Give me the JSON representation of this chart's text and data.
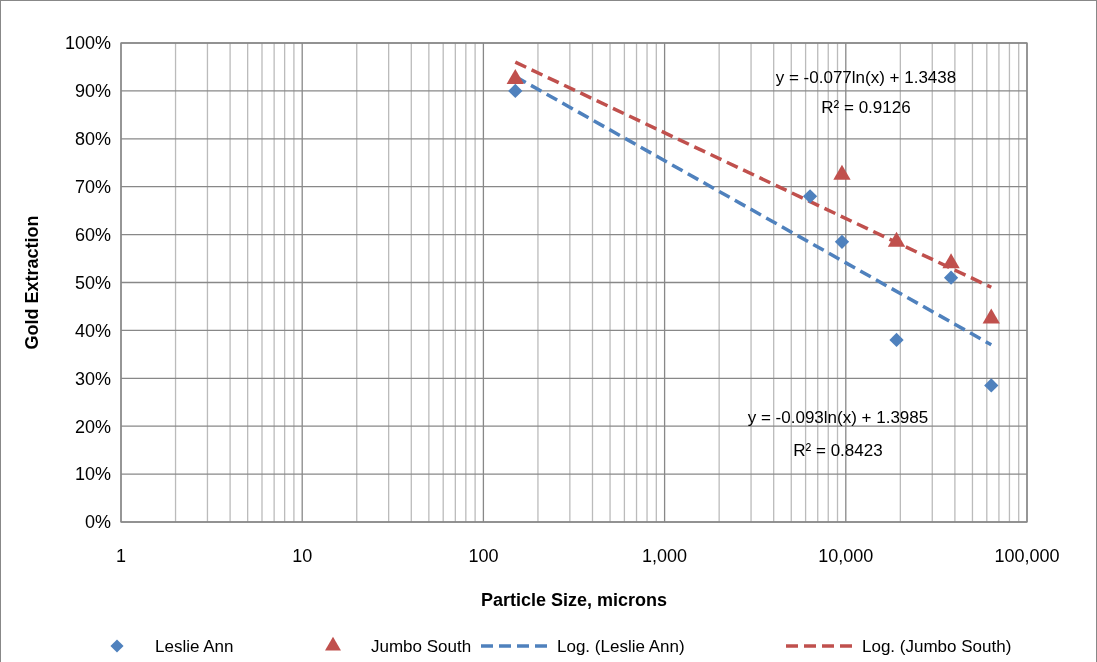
{
  "chart_data": {
    "type": "scatter",
    "xlabel": "Particle Size, microns",
    "ylabel": "Gold Extraction",
    "log": "x",
    "xlim": [
      1,
      100000
    ],
    "xticks": [
      1,
      10,
      100,
      {
        "value": 1000,
        "label": "1,000"
      },
      {
        "value": 10000,
        "label": "10,000"
      },
      {
        "value": 100000,
        "label": "100,000"
      }
    ],
    "ylim": [
      0,
      100
    ],
    "yticks": [
      {
        "value": 0,
        "label": "0%"
      },
      {
        "value": 10,
        "label": "10%"
      },
      {
        "value": 20,
        "label": "20%"
      },
      {
        "value": 30,
        "label": "30%"
      },
      {
        "value": 40,
        "label": "40%"
      },
      {
        "value": 50,
        "label": "50%"
      },
      {
        "value": 60,
        "label": "60%"
      },
      {
        "value": 70,
        "label": "70%"
      },
      {
        "value": 80,
        "label": "80%"
      },
      {
        "value": 90,
        "label": "90%"
      },
      {
        "value": 100,
        "label": "100%"
      }
    ],
    "grid": true,
    "legend": "bottom",
    "series": [
      {
        "name": "Leslie Ann",
        "marker": "diamond",
        "color": "#4f81bd",
        "x": [
          150,
          6350,
          9525,
          19050,
          38100,
          63500
        ],
        "values": [
          90,
          68,
          58.5,
          38,
          51,
          28.5
        ]
      },
      {
        "name": "Jumbo South",
        "marker": "triangle",
        "color": "#c0504d",
        "x": [
          150,
          9525,
          19050,
          38100,
          63500
        ],
        "values": [
          92.5,
          72.5,
          58.5,
          54,
          42.5
        ]
      },
      {
        "name": "Log. (Leslie Ann)",
        "type": "line",
        "line_style": "dashed",
        "color": "#4f81bd",
        "x": [
          150,
          63500
        ],
        "values": [
          93,
          37
        ]
      },
      {
        "name": "Log. (Jumbo South)",
        "type": "line",
        "line_style": "dashed",
        "color": "#c0504d",
        "x": [
          150,
          63500
        ],
        "values": [
          96,
          49
        ]
      }
    ],
    "annotations": [
      "y = -0.077ln(x) + 1.3438",
      "R² = 0.9126",
      "y = -0.093ln(x) + 1.3985",
      "R² = 0.8423"
    ]
  }
}
